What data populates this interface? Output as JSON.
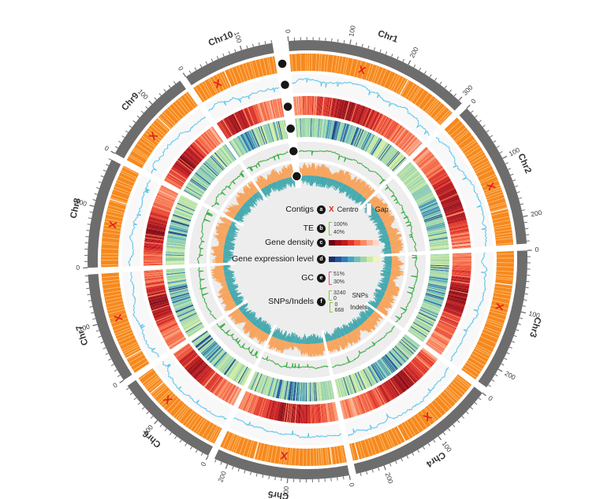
{
  "figure": {
    "description": "Circos-style circular genome overview with 10 chromosomes and 6 annotation tracks (a-f)",
    "background": "#ffffff"
  },
  "legend": {
    "rows": [
      {
        "label": "Contigs",
        "letter": "a",
        "centro_mark": "X",
        "centro": "Centro",
        "gap": "Gap"
      },
      {
        "label": "TE",
        "letter": "b",
        "max": "100%",
        "min": "40%"
      },
      {
        "label": "Gene density",
        "letter": "c"
      },
      {
        "label": "Gene expression level",
        "letter": "d"
      },
      {
        "label": "GC",
        "letter": "e",
        "max": "51%",
        "min": "30%"
      },
      {
        "label": "SNPs/Indels",
        "letter": "f",
        "snps": {
          "max": "3240",
          "min": "0",
          "name": "SNPs"
        },
        "indels": {
          "min": "0",
          "max": "668",
          "name": "Indels"
        }
      }
    ]
  },
  "chart_data": {
    "type": "circos",
    "genome_unit": "Mb",
    "tick_label_interval": 100,
    "minor_tick_interval": 10,
    "chromosomes": [
      {
        "name": "Chr1",
        "size": 307,
        "centromere": 130,
        "tick_labels": [
          0,
          100,
          200,
          300
        ],
        "gaps": [
          211
        ]
      },
      {
        "name": "Chr2",
        "size": 244,
        "centromere": 135,
        "tick_labels": [
          0,
          100,
          200
        ],
        "gaps": [
          180
        ]
      },
      {
        "name": "Chr3",
        "size": 235,
        "centromere": 100,
        "tick_labels": [
          0,
          100,
          200
        ],
        "gaps": [
          58
        ]
      },
      {
        "name": "Chr4",
        "size": 247,
        "centromere": 95,
        "tick_labels": [
          0,
          100,
          200
        ],
        "gaps": [
          150,
          236
        ]
      },
      {
        "name": "Chr5",
        "size": 223,
        "centromere": 110,
        "tick_labels": [
          0,
          100,
          200
        ],
        "gaps": [
          25,
          160
        ]
      },
      {
        "name": "Chr6",
        "size": 174,
        "centromere": 112,
        "tick_labels": [
          0,
          100
        ],
        "gaps": [
          140
        ]
      },
      {
        "name": "Chr7",
        "size": 182,
        "centromere": 100,
        "tick_labels": [
          0,
          100
        ],
        "gaps": [
          28
        ]
      },
      {
        "name": "Chr8",
        "size": 181,
        "centromere": 76,
        "tick_labels": [
          0,
          100
        ],
        "gaps": [
          118
        ]
      },
      {
        "name": "Chr9",
        "size": 159,
        "centromere": 61,
        "tick_labels": [
          0,
          100
        ],
        "gaps": [
          90
        ]
      },
      {
        "name": "Chr10",
        "size": 151,
        "centromere": 41,
        "tick_labels": [
          0,
          100
        ],
        "gaps": [
          60
        ]
      }
    ],
    "tracks": [
      {
        "id": "a",
        "name": "Contigs",
        "kind": "segments",
        "color": "#F6891F",
        "marks": {
          "centromere": "red X",
          "gap": "white bar"
        }
      },
      {
        "id": "b",
        "name": "TE",
        "kind": "line",
        "color": "#5FC6EA",
        "scale": {
          "min": "40%",
          "max": "100%"
        }
      },
      {
        "id": "c",
        "name": "Gene density",
        "kind": "heatmap",
        "palette_dark_to_light": [
          "#70000f",
          "#a00f15",
          "#c2181d",
          "#e23428",
          "#f4603f",
          "#fb8a60",
          "#fcb499",
          "#fcd9c8"
        ]
      },
      {
        "id": "d",
        "name": "Gene expression level",
        "kind": "heatmap",
        "palette_dark_to_light": [
          "#16306e",
          "#22559c",
          "#2b7fb8",
          "#41a6c4",
          "#6fc0b8",
          "#9fd6a9",
          "#cdeb9f",
          "#eef7b0"
        ]
      },
      {
        "id": "e",
        "name": "GC",
        "kind": "line",
        "color": "#3fae49",
        "scale": {
          "min": "30%",
          "max": "51%"
        }
      },
      {
        "id": "f",
        "name": "SNPs/Indels",
        "kind": "dual_histogram",
        "series": [
          {
            "name": "SNPs",
            "color": "#F89B4B",
            "scale": {
              "min": 0,
              "max": 3240
            },
            "direction": "outward"
          },
          {
            "name": "Indels",
            "color": "#2EA0A6",
            "scale": {
              "min": 0,
              "max": 668
            },
            "direction": "inward"
          }
        ]
      }
    ],
    "layout": {
      "outer_ring_color": "#6d6d6d",
      "track_background": "#ededed",
      "te_band_background": "#f8f8f8",
      "centromere_x_color": "#e4261f",
      "contig_boundary_color": "#ffc983",
      "legend_position": "center"
    }
  }
}
